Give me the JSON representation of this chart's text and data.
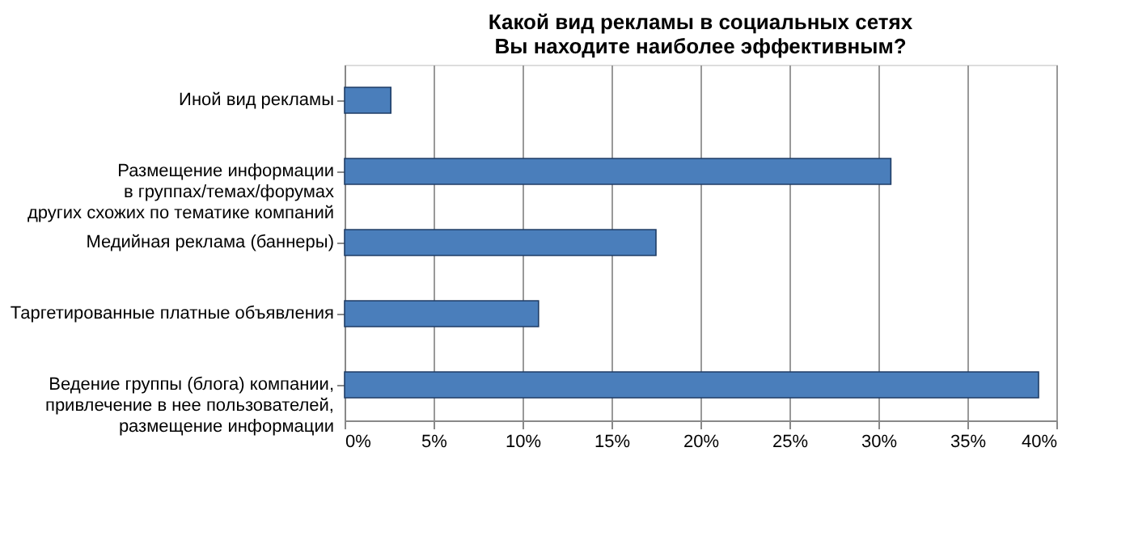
{
  "chart_data": {
    "type": "bar",
    "orientation": "horizontal",
    "title": "Какой вид рекламы в социальных сетях\nВы находите наиболее эффективным?",
    "categories": [
      "Иной вид рекламы",
      "Размещение информации\nв группах/темах/форумах\nдругих схожих по тематике компаний",
      "Медийная реклама (баннеры)",
      "Таргетированные платные объявления",
      "Ведение группы (блога) компании,\nпривлечение в нее пользователей,\nразмещение информации"
    ],
    "values": [
      2.6,
      30.7,
      17.5,
      10.9,
      39.0
    ],
    "color": "#4a7ebb",
    "xlim": [
      0,
      40
    ],
    "xticks": [
      {
        "value": 0,
        "label": "0%"
      },
      {
        "value": 5,
        "label": "5%"
      },
      {
        "value": 10,
        "label": "10%"
      },
      {
        "value": 15,
        "label": "15%"
      },
      {
        "value": 20,
        "label": "20%"
      },
      {
        "value": 25,
        "label": "25%"
      },
      {
        "value": 30,
        "label": "30%"
      },
      {
        "value": 35,
        "label": "35%"
      },
      {
        "value": 40,
        "label": "40%"
      }
    ],
    "grid": "x"
  }
}
